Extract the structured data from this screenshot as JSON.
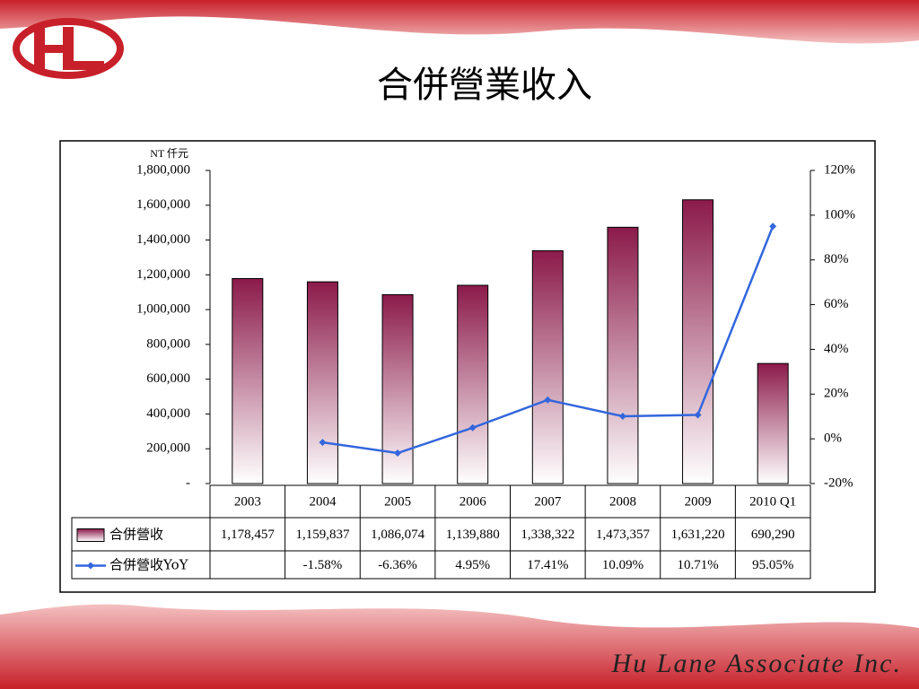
{
  "title": "合併營業收入",
  "footer": "Hu Lane Associate Inc.",
  "chart_data": {
    "type": "bar",
    "y_label": "NT 仟元",
    "categories": [
      "2003",
      "2004",
      "2005",
      "2006",
      "2007",
      "2008",
      "2009",
      "2010 Q1"
    ],
    "ylim": [
      0,
      1800000
    ],
    "yticks": [
      {
        "value": 0,
        "label": "-"
      },
      {
        "value": 200000,
        "label": "200,000"
      },
      {
        "value": 400000,
        "label": "400,000"
      },
      {
        "value": 600000,
        "label": "600,000"
      },
      {
        "value": 800000,
        "label": "800,000"
      },
      {
        "value": 1000000,
        "label": "1,000,000"
      },
      {
        "value": 1200000,
        "label": "1,200,000"
      },
      {
        "value": 1400000,
        "label": "1,400,000"
      },
      {
        "value": 1600000,
        "label": "1,600,000"
      },
      {
        "value": 1800000,
        "label": "1,800,000"
      }
    ],
    "y2lim": [
      -20,
      120
    ],
    "y2ticks": [
      {
        "value": -20,
        "label": "-20%"
      },
      {
        "value": 0,
        "label": "0%"
      },
      {
        "value": 20,
        "label": "20%"
      },
      {
        "value": 40,
        "label": "40%"
      },
      {
        "value": 60,
        "label": "60%"
      },
      {
        "value": 80,
        "label": "80%"
      },
      {
        "value": 100,
        "label": "100%"
      },
      {
        "value": 120,
        "label": "120%"
      }
    ],
    "series": [
      {
        "name": "合併營收",
        "type": "bar",
        "color": "#8b1a4a",
        "values": [
          1178457,
          1159837,
          1086074,
          1139880,
          1338322,
          1473357,
          1631220,
          690290
        ],
        "value_labels": [
          "1,178,457",
          "1,159,837",
          "1,086,074",
          "1,139,880",
          "1,338,322",
          "1,473,357",
          "1,631,220",
          "690,290"
        ]
      },
      {
        "name": "合併營收YoY",
        "type": "line",
        "axis": "y2",
        "color": "#3366dd",
        "values": [
          null,
          -1.58,
          -6.36,
          4.95,
          17.41,
          10.09,
          10.71,
          95.05
        ],
        "value_labels": [
          null,
          "-1.58%",
          "-6.36%",
          "4.95%",
          "17.41%",
          "10.09%",
          "10.71%",
          "95.05%"
        ]
      }
    ]
  }
}
